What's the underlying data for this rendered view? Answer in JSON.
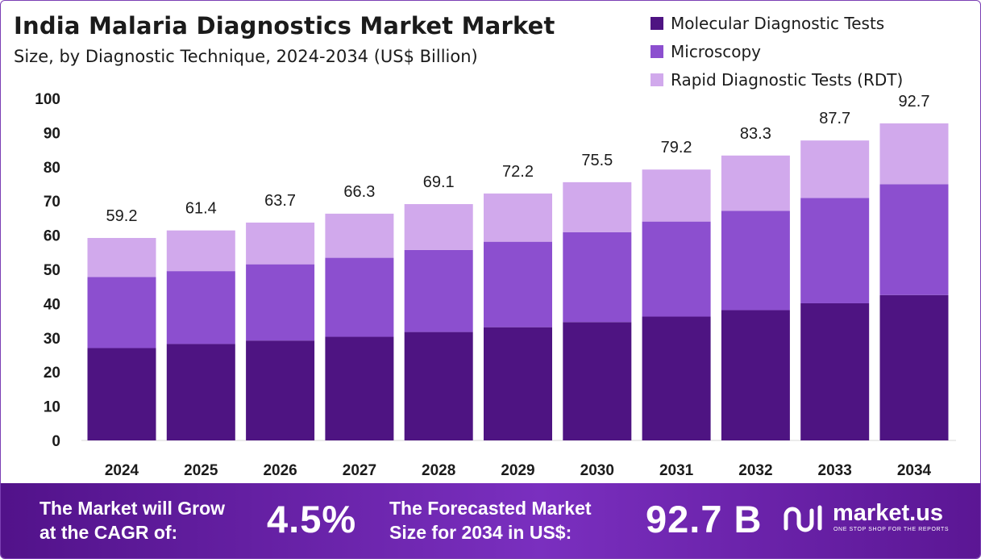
{
  "header": {
    "title": "India Malaria Diagnostics Market Market",
    "subtitle": "Size, by Diagnostic Technique, 2024-2034 (US$ Billion)"
  },
  "legend": [
    {
      "label": "Molecular Diagnostic Tests",
      "color": "#4e1482"
    },
    {
      "label": "Microscopy",
      "color": "#8c4fcf"
    },
    {
      "label": "Rapid Diagnostic Tests (RDT)",
      "color": "#d1a9ec"
    }
  ],
  "chart_data": {
    "type": "bar",
    "stacked": true,
    "title": "India Malaria Diagnostics Market Market",
    "subtitle": "Size, by Diagnostic Technique, 2024-2034 (US$ Billion)",
    "categories": [
      "2024",
      "2025",
      "2026",
      "2027",
      "2028",
      "2029",
      "2030",
      "2031",
      "2032",
      "2033",
      "2034"
    ],
    "series": [
      {
        "name": "Molecular Diagnostic Tests",
        "color": "#4e1482",
        "values": [
          27.0,
          28.2,
          29.2,
          30.3,
          31.7,
          33.1,
          34.6,
          36.2,
          38.1,
          40.1,
          42.5
        ]
      },
      {
        "name": "Microscopy",
        "color": "#8c4fcf",
        "values": [
          20.8,
          21.3,
          22.3,
          23.1,
          24.0,
          25.0,
          26.3,
          27.8,
          29.0,
          30.8,
          32.4
        ]
      },
      {
        "name": "Rapid Diagnostic Tests (RDT)",
        "color": "#d1a9ec",
        "values": [
          11.4,
          11.9,
          12.2,
          12.9,
          13.4,
          14.1,
          14.6,
          15.2,
          16.2,
          16.8,
          17.8
        ]
      }
    ],
    "totals": [
      "59.2",
      "61.4",
      "63.7",
      "66.3",
      "69.1",
      "72.2",
      "75.5",
      "79.2",
      "83.3",
      "87.7",
      "92.7"
    ],
    "y_ticks": [
      "0",
      "10",
      "20",
      "30",
      "40",
      "50",
      "60",
      "70",
      "80",
      "90",
      "100"
    ],
    "ylim": [
      0,
      100
    ],
    "grid": false,
    "legend_position": "top-right"
  },
  "footer": {
    "cagr_text_1": "The Market will Grow",
    "cagr_text_2": "at the CAGR of:",
    "cagr_value": "4.5%",
    "forecast_text_1": "The Forecasted Market",
    "forecast_text_2": "Size for 2034 in US$:",
    "forecast_value": "92.7 B",
    "brand_name": "market.us",
    "brand_tagline": "ONE STOP SHOP FOR THE REPORTS"
  }
}
